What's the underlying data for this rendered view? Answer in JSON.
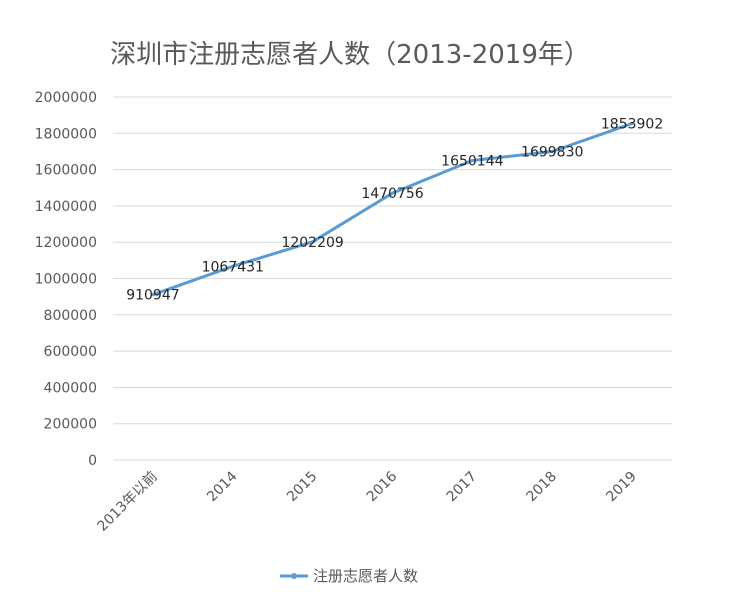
{
  "chart_data": {
    "type": "line",
    "title": "深圳市注册志愿者人数（2013-2019年）",
    "categories": [
      "2013年以前",
      "2014",
      "2015",
      "2016",
      "2017",
      "2018",
      "2019"
    ],
    "series": [
      {
        "name": "注册志愿者人数",
        "values": [
          910947,
          1067431,
          1202209,
          1470756,
          1650144,
          1699830,
          1853902
        ],
        "color": "#5b9bd5"
      }
    ],
    "yticks": [
      "0",
      "200000",
      "400000",
      "600000",
      "800000",
      "1000000",
      "1200000",
      "1400000",
      "1600000",
      "1800000",
      "2000000"
    ],
    "ylim": [
      0,
      2000000
    ],
    "grid": true,
    "data_labels": true,
    "legend_position": "bottom"
  }
}
